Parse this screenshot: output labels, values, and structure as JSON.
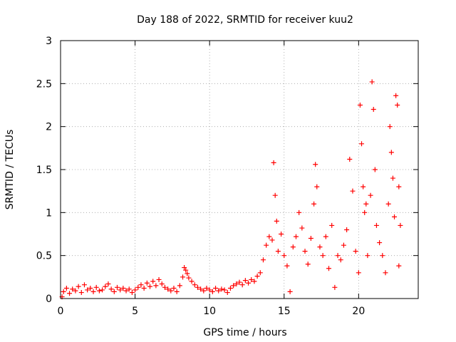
{
  "chart_data": {
    "type": "scatter",
    "title": "Day 188 of 2022, SRMTID for receiver kuu2",
    "xlabel": "GPS time / hours",
    "ylabel": "SRMTID / TECUs",
    "xlim": [
      0,
      24
    ],
    "ylim": [
      0,
      3
    ],
    "xticks": [
      0,
      5,
      10,
      15,
      20
    ],
    "yticks": [
      0,
      0.5,
      1,
      1.5,
      2,
      2.5,
      3
    ],
    "xtick_labels": [
      "0",
      "5",
      "10",
      "15",
      "20"
    ],
    "ytick_labels": [
      "0",
      "0.5",
      "1",
      "1.5",
      "2",
      "2.5",
      "3"
    ],
    "grid": true,
    "marker": "+",
    "marker_color": "#ff0000",
    "series": [
      {
        "name": "SRMTID",
        "points": [
          [
            0.1,
            0.02
          ],
          [
            0.2,
            0.08
          ],
          [
            0.4,
            0.12
          ],
          [
            0.6,
            0.06
          ],
          [
            0.8,
            0.11
          ],
          [
            1.0,
            0.09
          ],
          [
            1.2,
            0.14
          ],
          [
            1.4,
            0.07
          ],
          [
            1.6,
            0.16
          ],
          [
            1.8,
            0.1
          ],
          [
            2.0,
            0.12
          ],
          [
            2.2,
            0.08
          ],
          [
            2.4,
            0.13
          ],
          [
            2.6,
            0.09
          ],
          [
            2.8,
            0.1
          ],
          [
            3.0,
            0.14
          ],
          [
            3.2,
            0.17
          ],
          [
            3.4,
            0.11
          ],
          [
            3.6,
            0.08
          ],
          [
            3.8,
            0.13
          ],
          [
            4.0,
            0.1
          ],
          [
            4.2,
            0.12
          ],
          [
            4.4,
            0.09
          ],
          [
            4.6,
            0.11
          ],
          [
            4.8,
            0.07
          ],
          [
            5.0,
            0.1
          ],
          [
            5.2,
            0.13
          ],
          [
            5.4,
            0.16
          ],
          [
            5.6,
            0.12
          ],
          [
            5.8,
            0.18
          ],
          [
            6.0,
            0.14
          ],
          [
            6.2,
            0.2
          ],
          [
            6.4,
            0.15
          ],
          [
            6.6,
            0.22
          ],
          [
            6.8,
            0.17
          ],
          [
            7.0,
            0.13
          ],
          [
            7.2,
            0.11
          ],
          [
            7.4,
            0.09
          ],
          [
            7.6,
            0.12
          ],
          [
            7.8,
            0.08
          ],
          [
            8.0,
            0.15
          ],
          [
            8.2,
            0.25
          ],
          [
            8.3,
            0.36
          ],
          [
            8.4,
            0.33
          ],
          [
            8.5,
            0.29
          ],
          [
            8.6,
            0.24
          ],
          [
            8.8,
            0.2
          ],
          [
            9.0,
            0.16
          ],
          [
            9.2,
            0.13
          ],
          [
            9.4,
            0.11
          ],
          [
            9.6,
            0.09
          ],
          [
            9.8,
            0.12
          ],
          [
            10.0,
            0.1
          ],
          [
            10.2,
            0.08
          ],
          [
            10.4,
            0.12
          ],
          [
            10.6,
            0.09
          ],
          [
            10.8,
            0.11
          ],
          [
            11.0,
            0.1
          ],
          [
            11.2,
            0.07
          ],
          [
            11.4,
            0.12
          ],
          [
            11.6,
            0.15
          ],
          [
            11.8,
            0.17
          ],
          [
            12.0,
            0.19
          ],
          [
            12.2,
            0.16
          ],
          [
            12.4,
            0.21
          ],
          [
            12.6,
            0.18
          ],
          [
            12.8,
            0.22
          ],
          [
            13.0,
            0.2
          ],
          [
            13.2,
            0.26
          ],
          [
            13.4,
            0.3
          ],
          [
            13.6,
            0.45
          ],
          [
            13.8,
            0.62
          ],
          [
            14.0,
            0.72
          ],
          [
            14.2,
            0.68
          ],
          [
            14.3,
            1.58
          ],
          [
            14.4,
            1.2
          ],
          [
            14.5,
            0.9
          ],
          [
            14.6,
            0.55
          ],
          [
            14.8,
            0.75
          ],
          [
            15.0,
            0.5
          ],
          [
            15.2,
            0.38
          ],
          [
            15.4,
            0.08
          ],
          [
            15.6,
            0.6
          ],
          [
            15.8,
            0.72
          ],
          [
            16.0,
            1.0
          ],
          [
            16.2,
            0.82
          ],
          [
            16.4,
            0.55
          ],
          [
            16.6,
            0.4
          ],
          [
            16.8,
            0.7
          ],
          [
            17.0,
            1.1
          ],
          [
            17.1,
            1.56
          ],
          [
            17.2,
            1.3
          ],
          [
            17.4,
            0.6
          ],
          [
            17.6,
            0.5
          ],
          [
            17.8,
            0.72
          ],
          [
            18.0,
            0.35
          ],
          [
            18.2,
            0.85
          ],
          [
            18.4,
            0.13
          ],
          [
            18.6,
            0.5
          ],
          [
            18.8,
            0.45
          ],
          [
            19.0,
            0.62
          ],
          [
            19.2,
            0.8
          ],
          [
            19.4,
            1.62
          ],
          [
            19.6,
            1.25
          ],
          [
            19.8,
            0.55
          ],
          [
            20.0,
            0.3
          ],
          [
            20.1,
            2.25
          ],
          [
            20.2,
            1.8
          ],
          [
            20.3,
            1.3
          ],
          [
            20.4,
            1.0
          ],
          [
            20.5,
            1.1
          ],
          [
            20.6,
            0.5
          ],
          [
            20.8,
            1.2
          ],
          [
            20.9,
            2.52
          ],
          [
            21.0,
            2.2
          ],
          [
            21.1,
            1.5
          ],
          [
            21.2,
            0.85
          ],
          [
            21.4,
            0.65
          ],
          [
            21.6,
            0.5
          ],
          [
            21.8,
            0.3
          ],
          [
            22.0,
            1.1
          ],
          [
            22.1,
            2.0
          ],
          [
            22.2,
            1.7
          ],
          [
            22.3,
            1.4
          ],
          [
            22.4,
            0.95
          ],
          [
            22.5,
            2.36
          ],
          [
            22.6,
            2.25
          ],
          [
            22.7,
            1.3
          ],
          [
            22.8,
            0.85
          ],
          [
            22.7,
            0.38
          ]
        ]
      }
    ]
  }
}
